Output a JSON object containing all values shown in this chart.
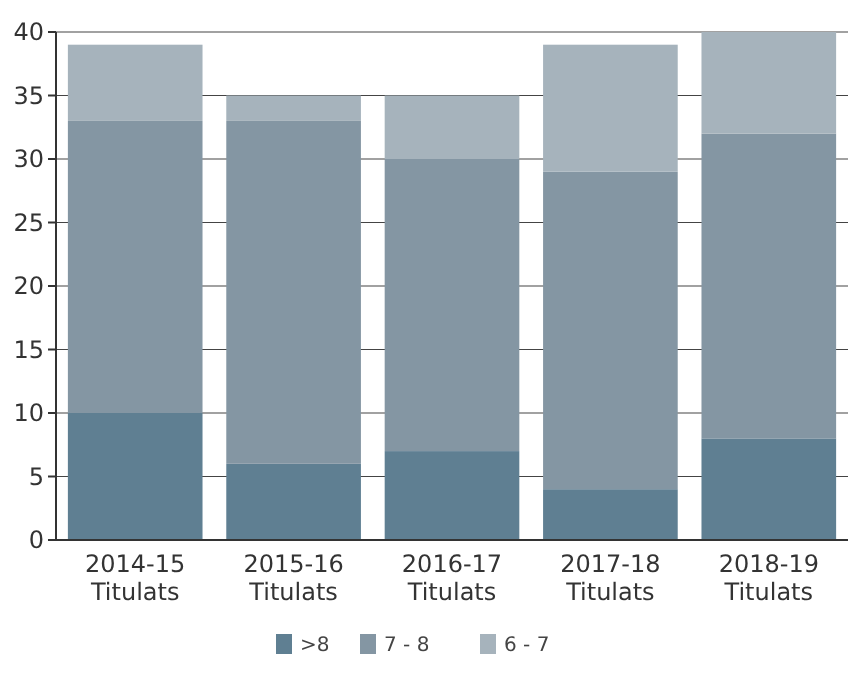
{
  "chart_data": {
    "type": "bar",
    "stacked": true,
    "categories": [
      "2014-15\nTitulats",
      "2015-16\nTitulats",
      "2016-17\nTitulats",
      "2017-18\nTitulats",
      "2018-19\nTitulats"
    ],
    "series": [
      {
        "name": ">8",
        "color": "#5f7f92",
        "values": [
          10,
          6,
          7,
          4,
          8
        ]
      },
      {
        "name": "7 - 8",
        "color": "#8496a3",
        "values": [
          23,
          27,
          23,
          25,
          24
        ]
      },
      {
        "name": "6 - 7",
        "color": "#a6b3bc",
        "values": [
          6,
          2,
          5,
          10,
          8
        ]
      }
    ],
    "ylim": [
      0,
      40
    ],
    "yticks": [
      0,
      5,
      10,
      15,
      20,
      25,
      30,
      35,
      40
    ],
    "grid": "y",
    "legend": "bottom"
  }
}
